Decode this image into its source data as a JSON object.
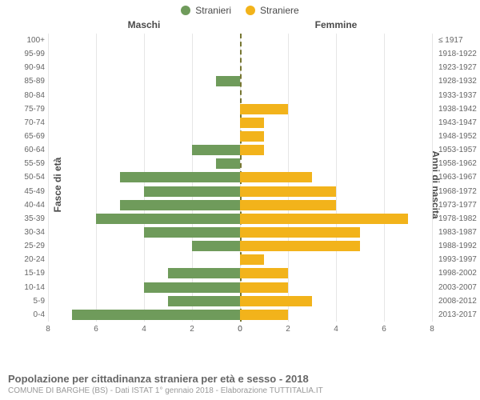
{
  "chart": {
    "type": "population-pyramid",
    "legend": [
      {
        "label": "Stranieri",
        "color": "#6f9b5b"
      },
      {
        "label": "Straniere",
        "color": "#f2b31b"
      }
    ],
    "header_left": "Maschi",
    "header_right": "Femmine",
    "yaxis_left_title": "Fasce di età",
    "yaxis_right_title": "Anni di nascita",
    "xlim": 8,
    "xticks_left": [
      8,
      6,
      4,
      2,
      0
    ],
    "xticks_right": [
      0,
      2,
      4,
      6,
      8
    ],
    "grid_color": "#e6e6e6",
    "centerline_color": "#777732",
    "left_bar_color": "#6f9b5b",
    "right_bar_color": "#f2b31b",
    "background_color": "#ffffff",
    "label_fontsize": 10,
    "rows": [
      {
        "age": "100+",
        "birth": "≤ 1917",
        "m": 0.0,
        "f": 0.0
      },
      {
        "age": "95-99",
        "birth": "1918-1922",
        "m": 0.0,
        "f": 0.0
      },
      {
        "age": "90-94",
        "birth": "1923-1927",
        "m": 0.0,
        "f": 0.0
      },
      {
        "age": "85-89",
        "birth": "1928-1932",
        "m": 1.0,
        "f": 0.0
      },
      {
        "age": "80-84",
        "birth": "1933-1937",
        "m": 0.0,
        "f": 0.0
      },
      {
        "age": "75-79",
        "birth": "1938-1942",
        "m": 0.0,
        "f": 2.0
      },
      {
        "age": "70-74",
        "birth": "1943-1947",
        "m": 0.0,
        "f": 1.0
      },
      {
        "age": "65-69",
        "birth": "1948-1952",
        "m": 0.0,
        "f": 1.0
      },
      {
        "age": "60-64",
        "birth": "1953-1957",
        "m": 2.0,
        "f": 1.0
      },
      {
        "age": "55-59",
        "birth": "1958-1962",
        "m": 1.0,
        "f": 0.0
      },
      {
        "age": "50-54",
        "birth": "1963-1967",
        "m": 5.0,
        "f": 3.0
      },
      {
        "age": "45-49",
        "birth": "1968-1972",
        "m": 4.0,
        "f": 4.0
      },
      {
        "age": "40-44",
        "birth": "1973-1977",
        "m": 5.0,
        "f": 4.0
      },
      {
        "age": "35-39",
        "birth": "1978-1982",
        "m": 6.0,
        "f": 7.0
      },
      {
        "age": "30-34",
        "birth": "1983-1987",
        "m": 4.0,
        "f": 5.0
      },
      {
        "age": "25-29",
        "birth": "1988-1992",
        "m": 2.0,
        "f": 5.0
      },
      {
        "age": "20-24",
        "birth": "1993-1997",
        "m": 0.0,
        "f": 1.0
      },
      {
        "age": "15-19",
        "birth": "1998-2002",
        "m": 3.0,
        "f": 2.0
      },
      {
        "age": "10-14",
        "birth": "2003-2007",
        "m": 4.0,
        "f": 2.0
      },
      {
        "age": "5-9",
        "birth": "2008-2012",
        "m": 3.0,
        "f": 3.0
      },
      {
        "age": "0-4",
        "birth": "2013-2017",
        "m": 7.0,
        "f": 2.0
      }
    ],
    "title": "Popolazione per cittadinanza straniera per età e sesso - 2018",
    "subtitle": "COMUNE DI BARGHE (BS) - Dati ISTAT 1° gennaio 2018 - Elaborazione TUTTITALIA.IT"
  }
}
